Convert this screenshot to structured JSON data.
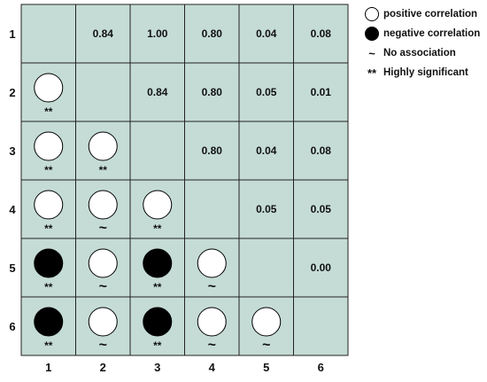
{
  "chart_data": {
    "type": "heatmap",
    "row_labels": [
      "1",
      "2",
      "3",
      "4",
      "5",
      "6"
    ],
    "col_labels": [
      "1",
      "2",
      "3",
      "4",
      "5",
      "6"
    ],
    "upper_values": [
      [
        "",
        "0.84",
        "1.00",
        "0.80",
        "0.04",
        "0.08"
      ],
      [
        "",
        "",
        "0.84",
        "0.80",
        "0.05",
        "0.01"
      ],
      [
        "",
        "",
        "",
        "0.80",
        "0.04",
        "0.08"
      ],
      [
        "",
        "",
        "",
        "",
        "0.05",
        "0.05"
      ],
      [
        "",
        "",
        "",
        "",
        "",
        "0.00"
      ],
      [
        "",
        "",
        "",
        "",
        "",
        ""
      ]
    ],
    "lower_symbols": [
      [
        null,
        null,
        null,
        null,
        null,
        null
      ],
      [
        {
          "fill": "white",
          "mark": "**"
        },
        null,
        null,
        null,
        null,
        null
      ],
      [
        {
          "fill": "white",
          "mark": "**"
        },
        {
          "fill": "white",
          "mark": "**"
        },
        null,
        null,
        null,
        null
      ],
      [
        {
          "fill": "white",
          "mark": "**"
        },
        {
          "fill": "white",
          "mark": "~"
        },
        {
          "fill": "white",
          "mark": "**"
        },
        null,
        null,
        null
      ],
      [
        {
          "fill": "black",
          "mark": "**"
        },
        {
          "fill": "white",
          "mark": "~"
        },
        {
          "fill": "black",
          "mark": "**"
        },
        {
          "fill": "white",
          "mark": "~"
        },
        null,
        null
      ],
      [
        {
          "fill": "black",
          "mark": "**"
        },
        {
          "fill": "white",
          "mark": "~"
        },
        {
          "fill": "black",
          "mark": "**"
        },
        {
          "fill": "white",
          "mark": "~"
        },
        {
          "fill": "white",
          "mark": "~"
        },
        null
      ]
    ],
    "legend": [
      {
        "symbol": "white-circle",
        "label": "positive correlation"
      },
      {
        "symbol": "black-circle",
        "label": "negative correlation"
      },
      {
        "symbol": "~",
        "label": "No association"
      },
      {
        "symbol": "**",
        "label": "Highly significant"
      }
    ],
    "colors": {
      "cell": "#c5dcd6",
      "grid": "#222222",
      "positive": "#ffffff",
      "negative": "#000000"
    }
  }
}
